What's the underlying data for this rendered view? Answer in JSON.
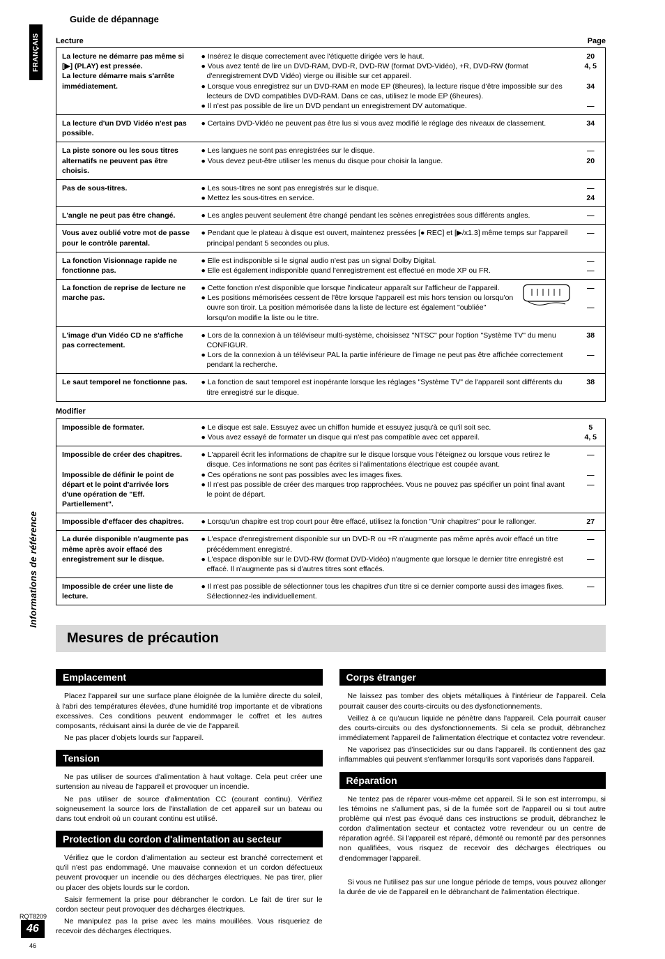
{
  "sidebar": {
    "lang": "FRANÇAIS",
    "info": "Informations de référence",
    "rqt": "RQT8209",
    "pageNum": "46",
    "pageNumSmall": "46"
  },
  "guideTitle": "Guide de dépannage",
  "lecture": {
    "label": "Lecture",
    "pageLabel": "Page",
    "rows": [
      {
        "problem": "La lecture ne démarre pas même si [▶] (PLAY) est pressée.\nLa lecture démarre mais s'arrête immédiatement.",
        "solutions": [
          "● Insérez le disque correctement avec l'étiquette dirigée vers le haut.",
          "● Vous avez tenté de lire un DVD-RAM, DVD-R, DVD-RW (format DVD-Vidéo), +R, DVD-RW (format d'enregistrement DVD Vidéo) vierge ou illisible sur cet appareil.",
          "● Lorsque vous enregistrez sur un DVD-RAM en mode EP (8heures), la lecture risque d'être impossible sur des lecteurs de DVD compatibles DVD-RAM. Dans ce cas, utilisez le mode EP (6heures).",
          "● Il n'est pas possible de lire un DVD pendant un enregistrement DV automatique."
        ],
        "pages": [
          "20",
          "4, 5",
          "",
          "34",
          "",
          "—"
        ]
      },
      {
        "problem": "La lecture d'un DVD Vidéo n'est pas possible.",
        "solutions": [
          "● Certains DVD-Vidéo ne peuvent pas être lus si vous avez modifié le réglage des niveaux de classement."
        ],
        "pages": [
          "34"
        ]
      },
      {
        "problem": "La piste sonore ou les sous titres alternatifs ne peuvent pas être choisis.",
        "solutions": [
          "● Les langues ne sont pas enregistrées sur le disque.",
          "● Vous devez peut-être utiliser les menus du disque pour choisir la langue."
        ],
        "pages": [
          "—",
          "20"
        ]
      },
      {
        "problem": "Pas de sous-titres.",
        "solutions": [
          "● Les sous-titres ne sont pas enregistrés sur le disque.",
          "● Mettez les sous-titres en service."
        ],
        "pages": [
          "—",
          "24"
        ]
      },
      {
        "problem": "L'angle ne peut pas être changé.",
        "solutions": [
          "● Les angles peuvent seulement être changé pendant les scènes enregistrées sous différents angles."
        ],
        "pages": [
          "—"
        ]
      },
      {
        "problem": "Vous avez oublié votre mot de passe pour le contrôle parental.",
        "solutions": [
          "● Pendant que le plateau à disque est ouvert, maintenez pressées [● REC] et [▶/x1.3] même temps sur l'appareil principal pendant 5 secondes ou plus."
        ],
        "pages": [
          "—"
        ]
      },
      {
        "problem": "La fonction Visionnage rapide ne fonctionne pas.",
        "solutions": [
          "● Elle est indisponible si le signal audio n'est pas un signal Dolby Digital.",
          "● Elle est également indisponible quand l'enregistrement est effectué en mode XP ou FR."
        ],
        "pages": [
          "—",
          "—"
        ]
      },
      {
        "problem": "La fonction de reprise de lecture ne marche pas.",
        "solutions": [
          "● Cette fonction n'est disponible que lorsque l'indicateur apparaît sur l'afficheur de l'appareil.",
          "● Les positions mémorisées cessent de l'être lorsque l'appareil est mis hors tension ou lorsqu'on ouvre son tiroir.  La position mémorisée dans la liste de lecture est également \"oubliée\" lorsqu'on modifie la liste ou le titre."
        ],
        "pages": [
          "—",
          "",
          "—"
        ],
        "hasDisplay": true
      },
      {
        "problem": "L'image d'un Vidéo CD ne s'affiche pas correctement.",
        "solutions": [
          "● Lors de la connexion à un téléviseur multi-système, choisissez \"NTSC\" pour l'option \"Système TV\" du menu CONFIGUR.",
          "● Lors de la connexion à un téléviseur PAL la partie inférieure de l'image ne peut pas être affichée correctement pendant la recherche."
        ],
        "pages": [
          "38",
          "",
          "—"
        ]
      },
      {
        "problem": "Le saut temporel ne fonctionne pas.",
        "solutions": [
          "● La fonction de saut temporel est inopérante lorsque les réglages \"Système TV\" de l'appareil sont différents du titre enregistré sur le disque."
        ],
        "pages": [
          "38"
        ]
      }
    ]
  },
  "modifier": {
    "label": "Modifier",
    "rows": [
      {
        "problem": "Impossible de formater.",
        "solutions": [
          "● Le disque est sale. Essuyez avec un chiffon humide et essuyez jusqu'à ce qu'il soit sec.",
          "● Vous avez essayé de formater un disque qui n'est pas compatible avec cet appareil."
        ],
        "pages": [
          "5",
          "4, 5"
        ]
      },
      {
        "problem": "Impossible de créer des chapitres.\n\nImpossible de définir le point de départ et le point d'arrivée lors d'une opération de \"Eff. Partiellement\".",
        "solutions": [
          "● L'appareil écrit les informations de chapitre sur le disque lorsque vous l'éteignez ou lorsque vous retirez le disque. Ces informations ne sont pas écrites si l'alimentations électrique est coupée avant.",
          "● Ces opérations ne sont pas possibles avec les images fixes.",
          "● Il n'est pas possible de créer des marques trop rapprochées. Vous ne pouvez pas spécifier un point final avant le point de départ."
        ],
        "pages": [
          "—",
          "",
          "—",
          "—"
        ]
      },
      {
        "problem": "Impossible d'effacer des chapitres.",
        "solutions": [
          "● Lorsqu'un chapitre est trop court pour être effacé, utilisez la fonction \"Unir chapitres\" pour le rallonger."
        ],
        "pages": [
          "27"
        ]
      },
      {
        "problem": "La durée disponible n'augmente pas même après avoir effacé des enregistrement sur le disque.",
        "solutions": [
          "● L'espace d'enregistrement disponible sur un DVD-R ou +R n'augmente pas même après avoir effacé un titre précédemment enregistré.",
          "● L'espace disponible sur le DVD-RW (format DVD-Vidéo) n'augmente que lorsque le dernier titre enregistré est effacé. Il n'augmente pas si d'autres titres sont effacés."
        ],
        "pages": [
          "—",
          "",
          "—"
        ]
      },
      {
        "problem": "Impossible de créer une liste de lecture.",
        "solutions": [
          "● Il n'est pas possible de sélectionner tous les chapitres d'un titre si ce dernier comporte aussi des images fixes. Sélectionnez-les individuellement."
        ],
        "pages": [
          "—"
        ]
      }
    ]
  },
  "mesures": {
    "title": "Mesures de précaution",
    "left": [
      {
        "heading": "Emplacement",
        "paras": [
          "Placez l'appareil sur une surface plane éloignée de la lumière directe du soleil, à l'abri des températures élevées, d'une humidité trop importante et de vibrations excessives. Ces conditions peuvent endommager le coffret et les autres composants, réduisant ainsi la durée de vie de l'appareil.",
          "Ne pas placer d'objets lourds sur l'appareil."
        ]
      },
      {
        "heading": "Tension",
        "paras": [
          "Ne pas utiliser de sources d'alimentation à haut voltage. Cela peut créer une surtension au niveau de l'appareil et provoquer un incendie.",
          "Ne pas utiliser de source d'alimentation CC (courant continu). Vérifiez soigneusement la source lors de l'installation de cet appareil sur un bateau ou dans tout endroit où un courant continu est utilisé."
        ]
      },
      {
        "heading": "Protection du cordon d'alimentation au secteur",
        "paras": [
          "Vérifiez que le cordon d'alimentation au secteur est branché correctement et qu'il n'est pas endommagé. Une mauvaise connexion et un cordon défectueux peuvent provoquer un incendie ou des décharges électriques. Ne pas tirer, plier ou placer des objets lourds sur le cordon.",
          "Saisir fermement la prise pour débrancher le cordon. Le fait de tirer sur le cordon secteur peut provoquer des décharges électriques.",
          "Ne manipulez pas la prise avec les mains mouillées. Vous risqueriez de recevoir des décharges électriques."
        ]
      }
    ],
    "right": [
      {
        "heading": "Corps étranger",
        "paras": [
          "Ne laissez pas tomber des objets métalliques à l'intérieur de l'appareil. Cela pourrait causer des courts-circuits ou des dysfonctionnements.",
          "Veillez à ce qu'aucun liquide ne pénètre dans l'appareil. Cela pourrait causer des courts-circuits ou des dysfonctionnements. Si cela se produit, débranchez immédiatement l'appareil de l'alimentation électrique et contactez votre revendeur.",
          "Ne vaporisez pas d'insecticides sur ou dans l'appareil. Ils contiennent des gaz inflammables qui peuvent s'enflammer lorsqu'ils sont vaporisés dans l'appareil."
        ]
      },
      {
        "heading": "Réparation",
        "paras": [
          "Ne tentez pas de réparer vous-même cet appareil. Si le son est interrompu, si les témoins ne s'allument pas, si de la fumée sort de l'appareil ou si tout autre problème qui n'est pas évoqué dans ces instructions se produit, débranchez le cordon d'alimentation secteur et contactez votre revendeur ou un centre de réparation agréé. Si l'appareil est réparé, démonté ou remonté par des personnes non qualifiées, vous risquez de recevoir des décharges électriques ou d'endommager l'appareil.",
          "",
          "Si vous ne l'utilisez pas sur une longue période de temps, vous pouvez allonger la durée de vie de l'appareil en le débranchant de l'alimentation électrique."
        ]
      }
    ]
  }
}
